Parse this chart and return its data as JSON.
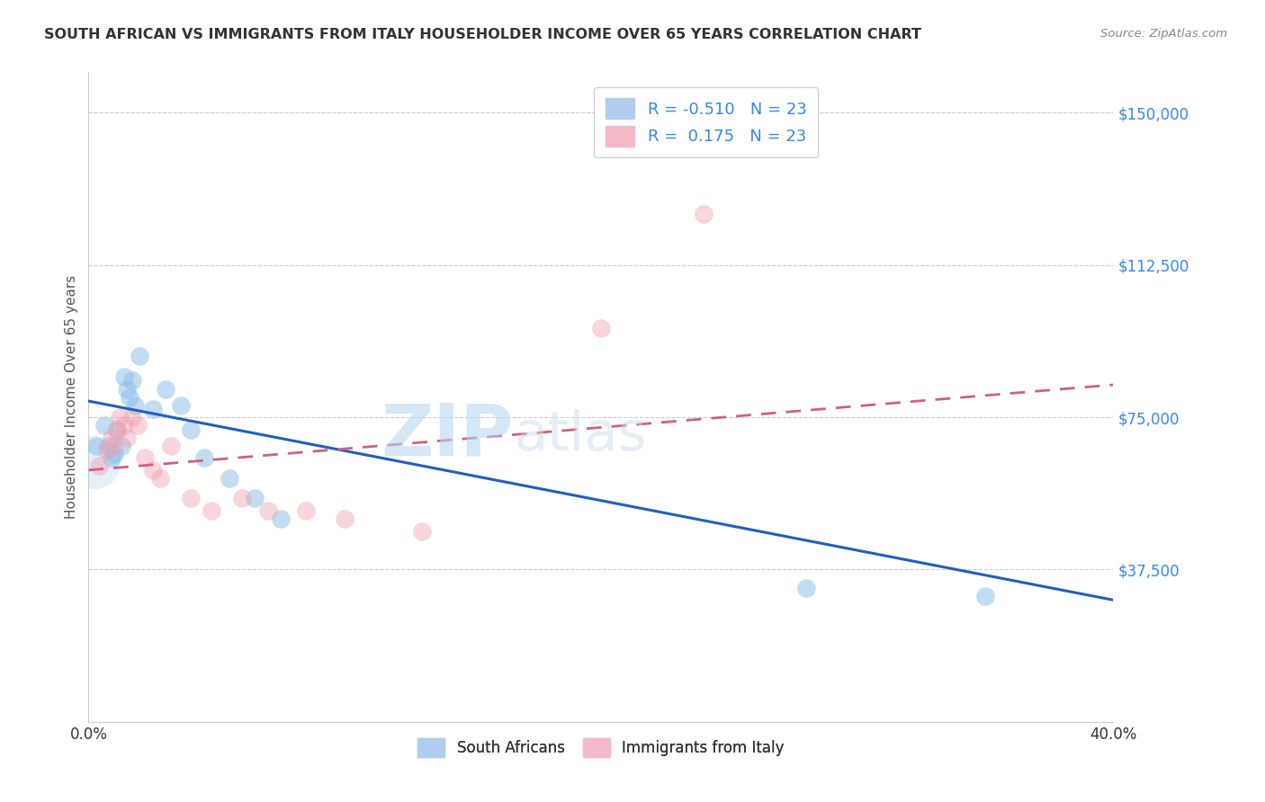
{
  "title": "SOUTH AFRICAN VS IMMIGRANTS FROM ITALY HOUSEHOLDER INCOME OVER 65 YEARS CORRELATION CHART",
  "source": "Source: ZipAtlas.com",
  "ylabel": "Householder Income Over 65 years",
  "yticks": [
    0,
    37500,
    75000,
    112500,
    150000
  ],
  "ytick_labels": [
    "",
    "$37,500",
    "$75,000",
    "$112,500",
    "$150,000"
  ],
  "xmin": 0.0,
  "xmax": 0.4,
  "ymin": 0,
  "ymax": 160000,
  "watermark_zip": "ZIP",
  "watermark_atlas": "atlas",
  "blue_color": "#90c0e8",
  "pink_color": "#f0a0b0",
  "blue_line_color": "#2060c0",
  "pink_line_color": "#d06080",
  "legend_text_color": "#3388ee",
  "legend_label1": "R = -0.510   N = 23",
  "legend_label2": "R =  0.175   N = 23",
  "legend_bottom": [
    "South Africans",
    "Immigrants from Italy"
  ],
  "blue_scatter": [
    [
      0.003,
      68000
    ],
    [
      0.006,
      73000
    ],
    [
      0.008,
      68000
    ],
    [
      0.009,
      65000
    ],
    [
      0.01,
      66000
    ],
    [
      0.011,
      72000
    ],
    [
      0.013,
      68000
    ],
    [
      0.014,
      85000
    ],
    [
      0.015,
      82000
    ],
    [
      0.016,
      80000
    ],
    [
      0.017,
      84000
    ],
    [
      0.018,
      78000
    ],
    [
      0.02,
      90000
    ],
    [
      0.025,
      77000
    ],
    [
      0.03,
      82000
    ],
    [
      0.036,
      78000
    ],
    [
      0.04,
      72000
    ],
    [
      0.045,
      65000
    ],
    [
      0.055,
      60000
    ],
    [
      0.065,
      55000
    ],
    [
      0.075,
      50000
    ],
    [
      0.28,
      33000
    ],
    [
      0.35,
      31000
    ]
  ],
  "pink_scatter": [
    [
      0.004,
      63000
    ],
    [
      0.007,
      67000
    ],
    [
      0.009,
      70000
    ],
    [
      0.01,
      68000
    ],
    [
      0.011,
      72000
    ],
    [
      0.012,
      75000
    ],
    [
      0.014,
      73000
    ],
    [
      0.015,
      70000
    ],
    [
      0.017,
      75000
    ],
    [
      0.019,
      73000
    ],
    [
      0.022,
      65000
    ],
    [
      0.025,
      62000
    ],
    [
      0.028,
      60000
    ],
    [
      0.032,
      68000
    ],
    [
      0.04,
      55000
    ],
    [
      0.048,
      52000
    ],
    [
      0.06,
      55000
    ],
    [
      0.07,
      52000
    ],
    [
      0.085,
      52000
    ],
    [
      0.1,
      50000
    ],
    [
      0.13,
      47000
    ],
    [
      0.2,
      97000
    ],
    [
      0.24,
      125000
    ]
  ],
  "blue_line": {
    "x0": 0.0,
    "y0": 79000,
    "x1": 0.4,
    "y1": 30000
  },
  "pink_line": {
    "x0": 0.0,
    "y0": 62000,
    "x1": 0.4,
    "y1": 83000
  }
}
